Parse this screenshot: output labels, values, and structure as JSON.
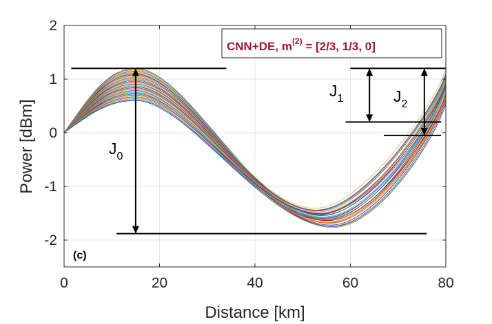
{
  "chart_data": {
    "type": "line",
    "title": "",
    "xlabel": "Distance [km]",
    "ylabel": "Power [dBm]",
    "xlim": [
      0,
      80
    ],
    "ylim": [
      -2.5,
      2
    ],
    "xticks": [
      0,
      20,
      40,
      60,
      80
    ],
    "yticks": [
      -2,
      -1,
      0,
      1,
      2
    ],
    "xtick_labels": [
      "0",
      "20",
      "40",
      "60",
      "80"
    ],
    "ytick_labels": [
      "-2",
      "-1",
      "0",
      "1",
      "2"
    ],
    "grid": true,
    "panel_label": "(c)",
    "legend": {
      "prefix": "CNN+DE, m",
      "superscript": "(2)",
      "suffix": " = [2/3, 1/3, 0]",
      "color": "#a2142f",
      "placement": "top-right"
    },
    "family": {
      "description": "ensemble of power profiles",
      "count": 36,
      "start_power": 0.0,
      "peak_power_range": [
        0.6,
        1.2
      ],
      "peak_distance_km": 15,
      "trough_power_range": [
        -1.4,
        -1.78
      ],
      "trough_distance_range_km": [
        52.5,
        56.5
      ],
      "end_power_range": [
        0.5,
        1.2
      ]
    },
    "annotations": {
      "J0": {
        "label": "J",
        "sub": "0",
        "from": 1.2,
        "to": -1.88,
        "x": 15
      },
      "J1": {
        "label": "J",
        "sub": "1",
        "from": 1.2,
        "to": 0.2,
        "x": 64
      },
      "J2": {
        "label": "J",
        "sub": "2",
        "from": 1.2,
        "to": -0.05,
        "x": 75.5
      },
      "hlines": [
        {
          "y": 1.2,
          "x0": 1.5,
          "x1": 34
        },
        {
          "y": -1.88,
          "x0": 11,
          "x1": 76
        },
        {
          "y": 1.2,
          "x0": 60,
          "x1": 80
        },
        {
          "y": 0.2,
          "x0": 59,
          "x1": 79
        },
        {
          "y": -0.05,
          "x0": 67,
          "x1": 79
        }
      ]
    }
  }
}
